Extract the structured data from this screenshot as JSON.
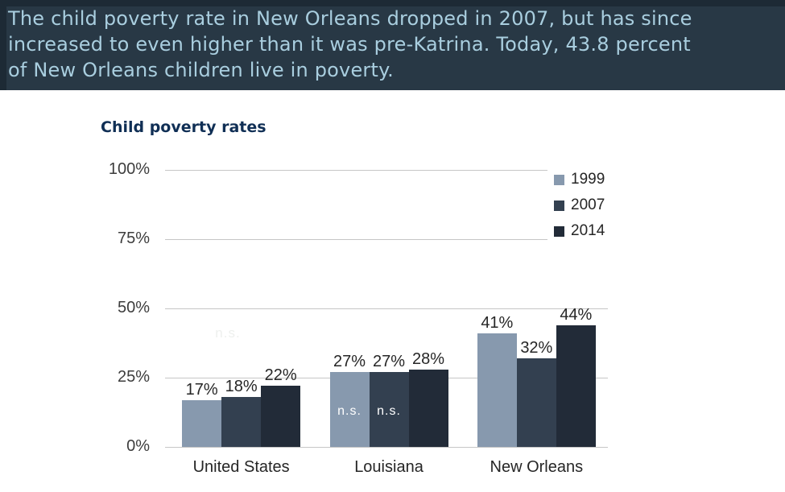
{
  "banner": {
    "lines": [
      "The child poverty rate in New Orleans dropped in 2007, but has since",
      "increased to even higher than it was pre-Katrina. Today, 43.8 percent",
      "of New Orleans children live in poverty."
    ],
    "bg_color": "#283845",
    "text_color": "#a9cedf"
  },
  "chart_data": {
    "type": "bar",
    "title": "Child poverty rates",
    "title_color": "#102f55",
    "categories": [
      "United States",
      "Louisiana",
      "New Orleans"
    ],
    "series": [
      {
        "name": "1999",
        "color": "#8799ae",
        "values": [
          17,
          27,
          41
        ]
      },
      {
        "name": "2007",
        "color": "#334050",
        "values": [
          18,
          27,
          32
        ]
      },
      {
        "name": "2014",
        "color": "#222b38",
        "values": [
          22,
          28,
          44
        ]
      }
    ],
    "value_labels": [
      [
        "17%",
        "27%",
        "41%"
      ],
      [
        "18%",
        "27%",
        "32%"
      ],
      [
        "22%",
        "28%",
        "44%"
      ]
    ],
    "bar_annotations": [
      [
        "",
        "n.s.",
        ""
      ],
      [
        "",
        "n.s.",
        ""
      ],
      [
        "",
        "",
        ""
      ]
    ],
    "faint_annotation": "n.s.",
    "yticks": [
      "0%",
      "25%",
      "50%",
      "75%",
      "100%"
    ],
    "ytick_values": [
      0,
      25,
      50,
      75,
      100
    ],
    "ylim": [
      0,
      100
    ],
    "grid": true,
    "legend_position": "top-right",
    "gridline_color": "#c6c6c6"
  }
}
